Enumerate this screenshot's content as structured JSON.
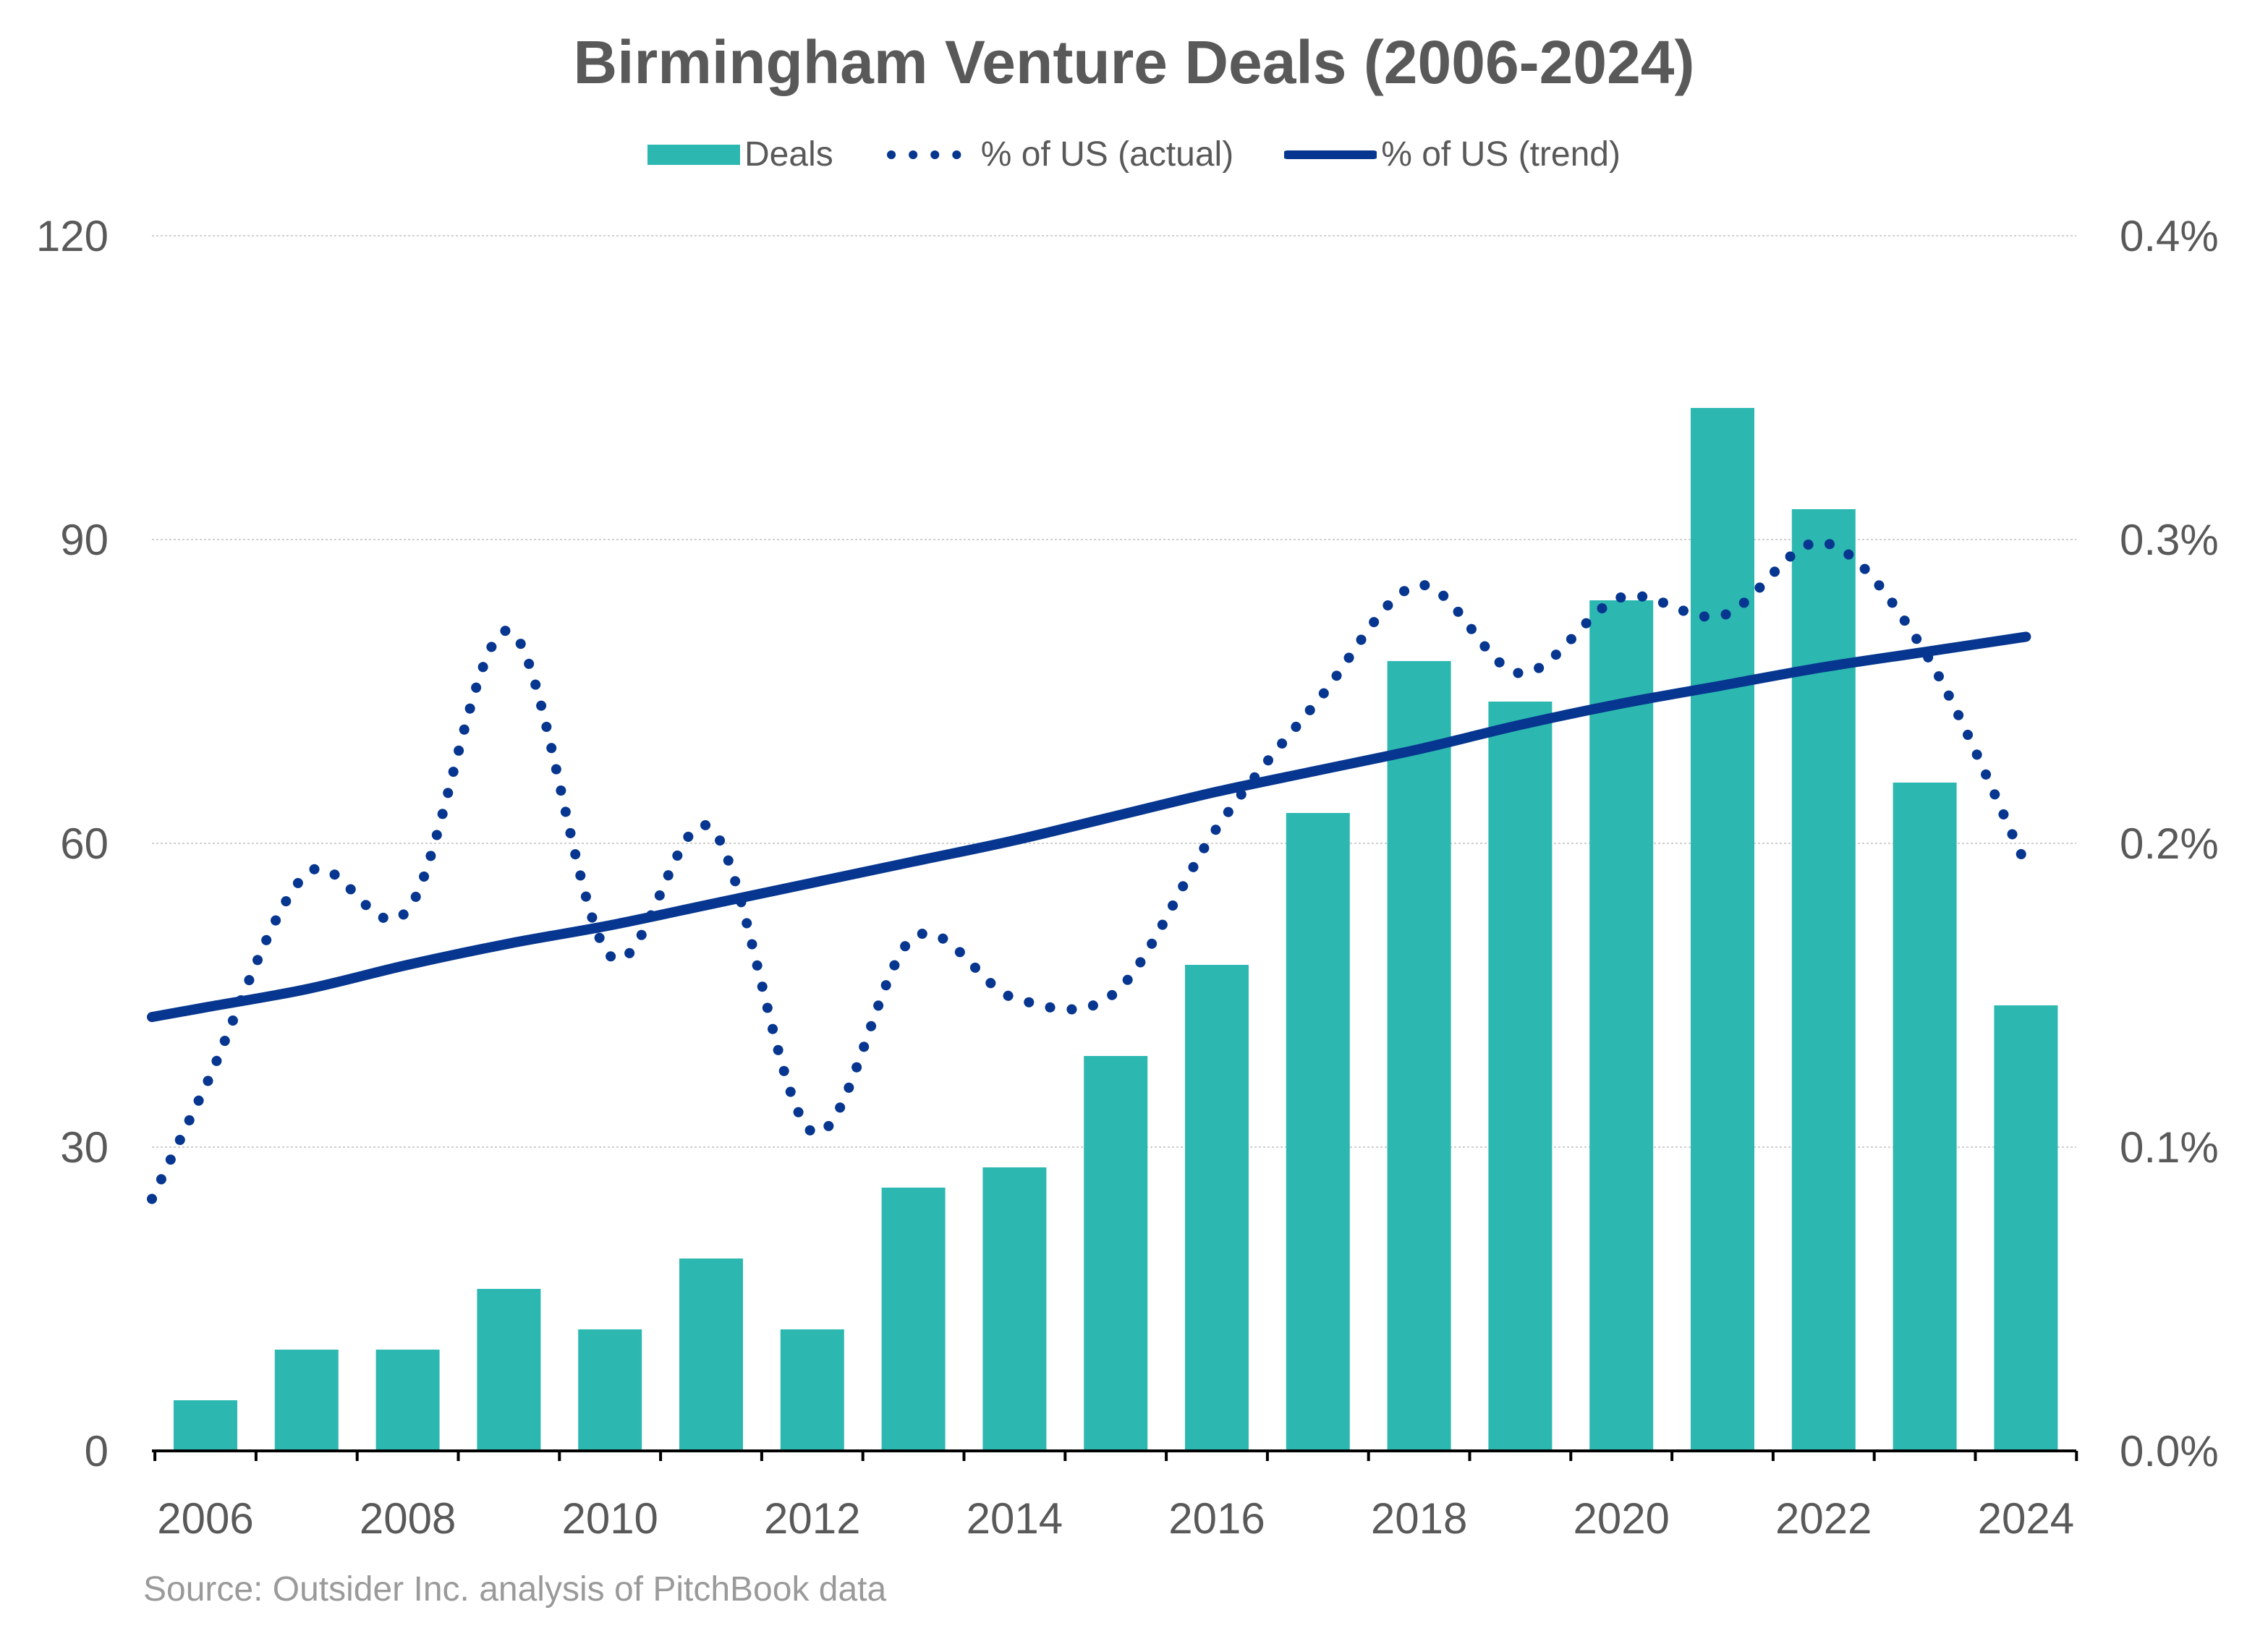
{
  "chart_data": {
    "type": "bar",
    "title": "Birmingham Venture Deals (2006-2024)",
    "categories": [
      "2006",
      "2007",
      "2008",
      "2009",
      "2010",
      "2011",
      "2012",
      "2013",
      "2014",
      "2015",
      "2016",
      "2017",
      "2018",
      "2019",
      "2020",
      "2021",
      "2022",
      "2023",
      "2024"
    ],
    "x_tick_labels": [
      "2006",
      "2008",
      "2010",
      "2012",
      "2014",
      "2016",
      "2018",
      "2020",
      "2022",
      "2024"
    ],
    "series": [
      {
        "name": "Deals",
        "type": "bar",
        "axis": "left",
        "color": "#2cb8b1",
        "values": [
          5,
          10,
          10,
          16,
          12,
          19,
          12,
          26,
          28,
          39,
          48,
          63,
          78,
          74,
          84,
          103,
          93,
          66,
          44
        ]
      },
      {
        "name": "% of US (actual)",
        "type": "line",
        "style": "dotted",
        "axis": "right",
        "unit": "%",
        "color": "#06368f",
        "values": [
          0.12,
          0.19,
          0.178,
          0.27,
          0.163,
          0.205,
          0.105,
          0.169,
          0.149,
          0.151,
          0.205,
          0.247,
          0.285,
          0.256,
          0.281,
          0.275,
          0.299,
          0.263,
          0.193
        ]
      },
      {
        "name": "% of US (trend)",
        "type": "line",
        "style": "solid",
        "axis": "right",
        "unit": "%",
        "color": "#06368f",
        "values": [
          0.146,
          0.152,
          0.16,
          0.167,
          0.173,
          0.18,
          0.187,
          0.194,
          0.201,
          0.209,
          0.217,
          0.224,
          0.231,
          0.239,
          0.246,
          0.252,
          0.258,
          0.263,
          0.268
        ]
      }
    ],
    "y_left": {
      "ylim": [
        0,
        120
      ],
      "ticks": [
        "0",
        "30",
        "60",
        "90",
        "120"
      ]
    },
    "y_right": {
      "ylim": [
        0,
        0.4
      ],
      "ticks": [
        "0.0%",
        "0.1%",
        "0.2%",
        "0.3%",
        "0.4%"
      ]
    },
    "grid": true,
    "legend_placement": "top-center"
  },
  "source": "Source: Outsider Inc. analysis of PitchBook data"
}
